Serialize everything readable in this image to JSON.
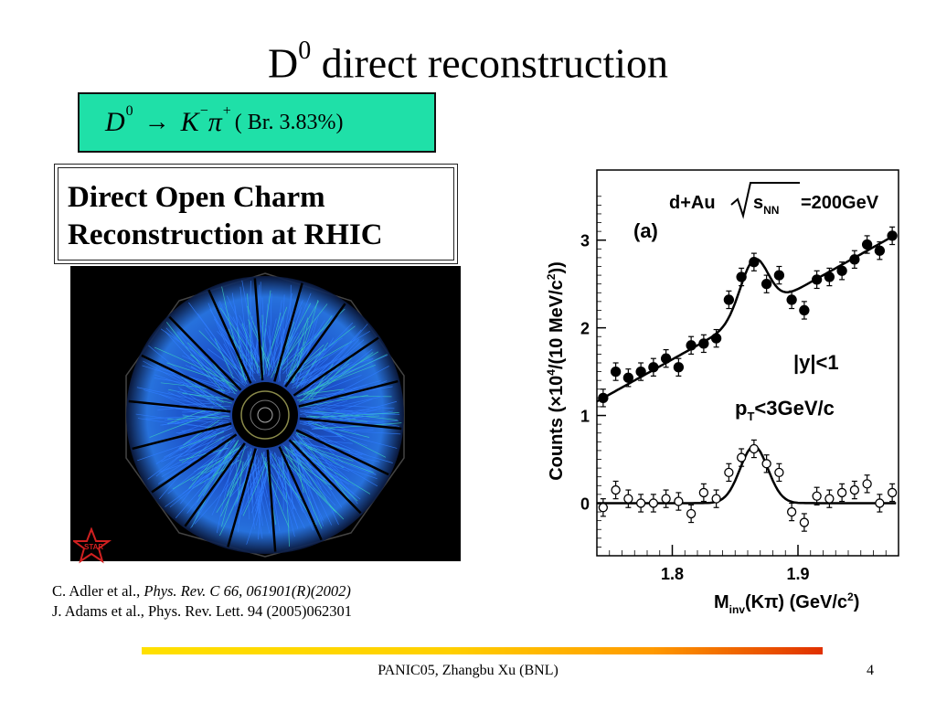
{
  "slide": {
    "title_main": "D",
    "title_sup": "0",
    "title_rest": " direct reconstruction"
  },
  "formula": {
    "lhs": "D",
    "lhs_sup": "0",
    "arrow": "→",
    "k": "K",
    "k_sup": "−",
    "pi": "π",
    "pi_sup": "+",
    "branching": "( Br. 3.83%)"
  },
  "heading": {
    "line1": "Direct Open Charm",
    "line2": "Reconstruction at RHIC"
  },
  "event_display": {
    "logo_text": "STAR",
    "colors": {
      "background": "#000000",
      "tracks": "#2f7dff",
      "accent": "#39d0c0"
    }
  },
  "references": {
    "ref1_authors": "C. Adler et al., ",
    "ref1_journal": "Phys. Rev. C 66, 061901(R)(2002)",
    "ref2": "J. Adams et al., Phys. Rev. Lett. 94 (2005)062301"
  },
  "footer": {
    "text": "PANIC05,  Zhangbu Xu (BNL)",
    "page": "4"
  },
  "chart_data": {
    "type": "scatter",
    "annotations": {
      "panel": "(a)",
      "system": "d+Au",
      "energy": "=200GeV",
      "rapidity": "|y|<1",
      "pt": "<3GeV/c"
    },
    "ylabel": "Counts (×10⁴/(10 MeV/c²))",
    "xlabel": "M_inv(Kπ) (GeV/c²)",
    "xlim": [
      1.74,
      1.98
    ],
    "ylim": [
      -0.6,
      3.8
    ],
    "xticks": [
      "1.8",
      "1.9"
    ],
    "yticks": [
      "0",
      "1",
      "2",
      "3"
    ],
    "series": [
      {
        "marker": "filled-circle",
        "x": [
          1.745,
          1.755,
          1.765,
          1.775,
          1.785,
          1.795,
          1.805,
          1.815,
          1.825,
          1.835,
          1.845,
          1.855,
          1.865,
          1.875,
          1.885,
          1.895,
          1.905,
          1.915,
          1.925,
          1.935,
          1.945,
          1.955,
          1.965,
          1.975
        ],
        "y": [
          1.2,
          1.5,
          1.43,
          1.5,
          1.55,
          1.65,
          1.55,
          1.8,
          1.82,
          1.88,
          2.32,
          2.58,
          2.75,
          2.5,
          2.6,
          2.32,
          2.2,
          2.55,
          2.58,
          2.65,
          2.78,
          2.95,
          2.88,
          3.05
        ],
        "err": [
          0.1,
          0.1,
          0.1,
          0.1,
          0.1,
          0.1,
          0.1,
          0.1,
          0.1,
          0.1,
          0.1,
          0.1,
          0.1,
          0.1,
          0.1,
          0.1,
          0.1,
          0.1,
          0.1,
          0.1,
          0.1,
          0.1,
          0.1,
          0.1
        ]
      },
      {
        "marker": "open-circle",
        "x": [
          1.745,
          1.755,
          1.765,
          1.775,
          1.785,
          1.795,
          1.805,
          1.815,
          1.825,
          1.835,
          1.845,
          1.855,
          1.865,
          1.875,
          1.885,
          1.895,
          1.905,
          1.915,
          1.925,
          1.935,
          1.945,
          1.955,
          1.965,
          1.975
        ],
        "y": [
          -0.05,
          0.15,
          0.05,
          0.0,
          0.0,
          0.05,
          0.02,
          -0.12,
          0.12,
          0.05,
          0.35,
          0.52,
          0.62,
          0.45,
          0.35,
          -0.1,
          -0.22,
          0.08,
          0.05,
          0.12,
          0.15,
          0.22,
          0.0,
          0.12
        ],
        "err": [
          0.1,
          0.1,
          0.1,
          0.1,
          0.1,
          0.1,
          0.1,
          0.1,
          0.1,
          0.1,
          0.1,
          0.1,
          0.1,
          0.1,
          0.1,
          0.1,
          0.1,
          0.1,
          0.1,
          0.1,
          0.1,
          0.1,
          0.1,
          0.1
        ]
      }
    ]
  }
}
